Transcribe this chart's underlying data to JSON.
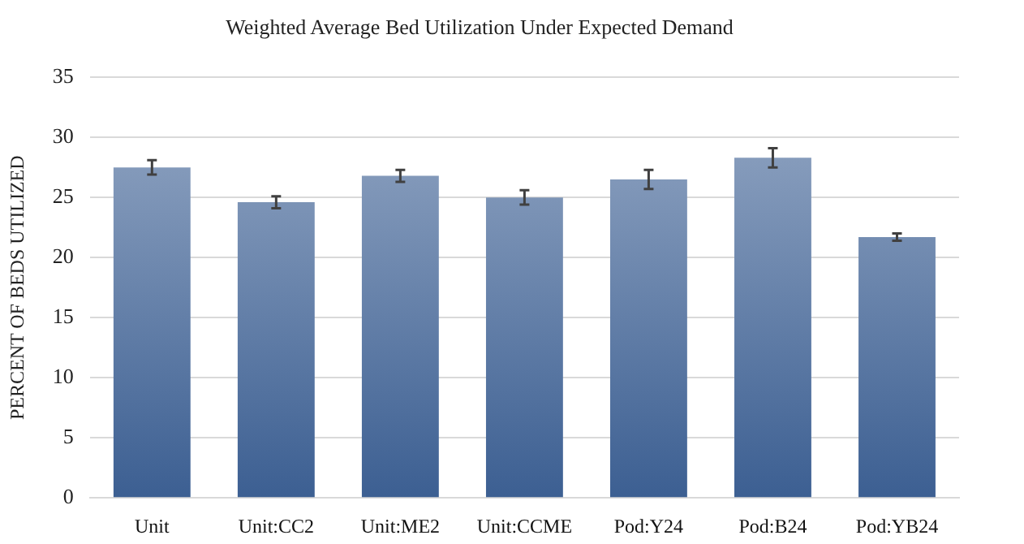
{
  "chart_data": {
    "type": "bar",
    "title": "Weighted Average Bed Utilization Under Expected Demand",
    "ylabel": "PERCENT OF BEDS UTILIZED",
    "categories": [
      "Unit",
      "Unit:CC2",
      "Unit:ME2",
      "Unit:CCME",
      "Pod:Y24",
      "Pod:B24",
      "Pod:YB24"
    ],
    "values": [
      27.5,
      24.6,
      26.8,
      25.0,
      26.5,
      28.3,
      21.7
    ],
    "errors": [
      0.6,
      0.5,
      0.5,
      0.6,
      0.8,
      0.8,
      0.3
    ],
    "color": "#3c5f92",
    "ylim": [
      0,
      35
    ],
    "yticks": [
      0,
      5,
      10,
      15,
      20,
      25,
      30,
      35
    ],
    "grid": "y",
    "legend": false
  }
}
